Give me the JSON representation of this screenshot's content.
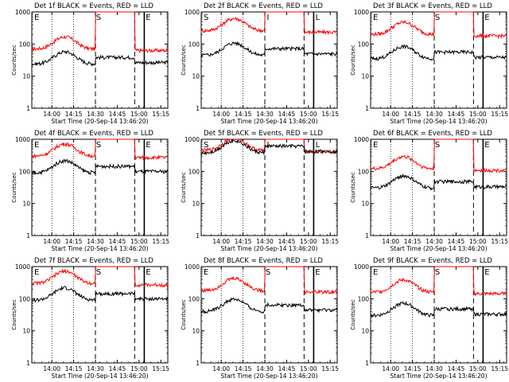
{
  "colors": {
    "events": "#000000",
    "lld": "#ff0000",
    "axis": "#000000",
    "marker": "#000000"
  },
  "chart_data": [
    {
      "type": "line",
      "title": "Det 1f BLACK = Events, RED = LLD",
      "xlabel": "Start Time (20-Sep-14 13:46:20)",
      "ylabel": "Counts/sec",
      "yscale": "log",
      "ylim": [
        1,
        1000
      ],
      "xlim": [
        13.77,
        15.33
      ],
      "xticks": [
        "14:00",
        "14:15",
        "14:30",
        "14:45",
        "15:00",
        "15:15"
      ],
      "yticks": [
        "1",
        "10",
        "100",
        "1000"
      ],
      "markers": [
        "E",
        "S",
        "E"
      ],
      "events_start": 24,
      "lld_start": 70
    },
    {
      "type": "line",
      "title": "Det 2f BLACK = Events, RED = LLD",
      "xlabel": "Start Time (20-Sep-14 13:46:20)",
      "ylabel": "Counts/sec",
      "yscale": "log",
      "ylim": [
        1,
        1000
      ],
      "xlim": [
        13.77,
        15.33
      ],
      "xticks": [
        "14:00",
        "14:15",
        "14:30",
        "14:45",
        "15:00",
        "15:15"
      ],
      "yticks": [
        "1",
        "10",
        "100",
        "1000"
      ],
      "markers": [
        "S",
        "I",
        "L"
      ],
      "events_start": 45,
      "lld_start": 260
    },
    {
      "type": "line",
      "title": "Det 3f BLACK = Events, RED = LLD",
      "xlabel": "Start Time (20-Sep-14 13:46:20)",
      "ylabel": "Counts/sec",
      "yscale": "log",
      "ylim": [
        1,
        1000
      ],
      "xlim": [
        13.77,
        15.33
      ],
      "xticks": [
        "14:00",
        "14:15",
        "14:30",
        "14:45",
        "15:00",
        "15:15"
      ],
      "yticks": [
        "1",
        "10",
        "100",
        "1000"
      ],
      "markers": [
        "E",
        "S",
        "E"
      ],
      "events_start": 35,
      "lld_start": 200
    },
    {
      "type": "line",
      "title": "Det 4f BLACK = Events, RED = LLD",
      "xlabel": "Start Time (20-Sep-14 13:46:20)",
      "ylabel": "Counts/sec",
      "yscale": "log",
      "ylim": [
        1,
        1000
      ],
      "xlim": [
        13.77,
        15.33
      ],
      "xticks": [
        "14:00",
        "14:15",
        "14:30",
        "14:45",
        "15:00",
        "15:15"
      ],
      "yticks": [
        "1",
        "10",
        "100",
        "1000"
      ],
      "markers": [
        "E",
        "S",
        "E"
      ],
      "events_start": 90,
      "lld_start": 300
    },
    {
      "type": "line",
      "title": "Det 5f BLACK = Events, RED = LLD",
      "xlabel": "Start Time (20-Sep-14 13:46:20)",
      "ylabel": "Counts/sec",
      "yscale": "log",
      "ylim": [
        1,
        1000
      ],
      "xlim": [
        13.77,
        15.33
      ],
      "xticks": [
        "14:00",
        "14:15",
        "14:30",
        "14:45",
        "15:00",
        "15:15"
      ],
      "yticks": [
        "1",
        "10",
        "100",
        "1000"
      ],
      "markers": [
        "S",
        "I",
        "L"
      ],
      "events_start": 380,
      "lld_start": 450
    },
    {
      "type": "line",
      "title": "Det 6f BLACK = Events, RED = LLD",
      "xlabel": "Start Time (20-Sep-14 13:46:20)",
      "ylabel": "Counts/sec",
      "yscale": "log",
      "ylim": [
        1,
        1000
      ],
      "xlim": [
        13.77,
        15.33
      ],
      "xticks": [
        "14:00",
        "14:15",
        "14:30",
        "14:45",
        "15:00",
        "15:15"
      ],
      "yticks": [
        "1",
        "10",
        "100",
        "1000"
      ],
      "markers": [
        "E",
        "S",
        "E"
      ],
      "events_start": 30,
      "lld_start": 120
    },
    {
      "type": "line",
      "title": "Det 7f BLACK = Events, RED = LLD",
      "xlabel": "Start Time (20-Sep-14 13:46:20)",
      "ylabel": "Counts/sec",
      "yscale": "log",
      "ylim": [
        1,
        1000
      ],
      "xlim": [
        13.77,
        15.33
      ],
      "xticks": [
        "14:00",
        "14:15",
        "14:30",
        "14:45",
        "15:00",
        "15:15"
      ],
      "yticks": [
        "1",
        "10",
        "100",
        "1000"
      ],
      "markers": [
        "E",
        "S",
        "E"
      ],
      "events_start": 90,
      "lld_start": 300
    },
    {
      "type": "line",
      "title": "Det 8f BLACK = Events, RED = LLD",
      "xlabel": "Start Time (20-Sep-14 13:46:20)",
      "ylabel": "Counts/sec",
      "yscale": "log",
      "ylim": [
        1,
        1000
      ],
      "xlim": [
        13.77,
        15.33
      ],
      "xticks": [
        "14:00",
        "14:15",
        "14:30",
        "14:45",
        "15:00",
        "15:15"
      ],
      "yticks": [
        "1",
        "10",
        "100",
        "1000"
      ],
      "markers": [
        "E",
        "S",
        "E"
      ],
      "events_start": 40,
      "lld_start": 180
    },
    {
      "type": "line",
      "title": "Det 9f BLACK = Events, RED = LLD",
      "xlabel": "Start Time (20-Sep-14 13:46:20)",
      "ylabel": "Counts/sec",
      "yscale": "log",
      "ylim": [
        1,
        1000
      ],
      "xlim": [
        13.77,
        15.33
      ],
      "xticks": [
        "14:00",
        "14:15",
        "14:30",
        "14:45",
        "15:00",
        "15:15"
      ],
      "yticks": [
        "1",
        "10",
        "100",
        "1000"
      ],
      "markers": [
        "E",
        "S",
        "E"
      ],
      "events_start": 30,
      "lld_start": 160
    }
  ]
}
